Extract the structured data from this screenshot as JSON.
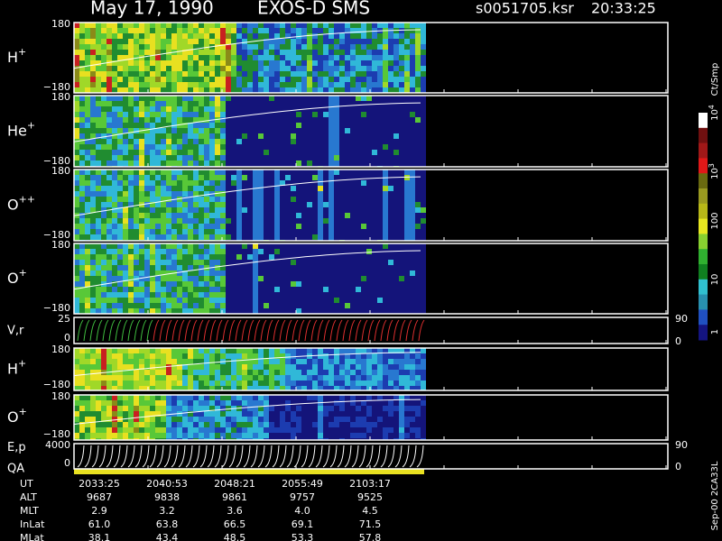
{
  "header": {
    "date": "May 17, 1990",
    "instrument": "EXOS-D SMS",
    "file": "s0051705.ksr",
    "time": "20:33:25"
  },
  "panels": [
    {
      "label": "H",
      "sup": "+",
      "ymax": "180",
      "ymin": "−180"
    },
    {
      "label": "He",
      "sup": "+",
      "ymax": "180",
      "ymin": "−180"
    },
    {
      "label": "O",
      "sup": "++",
      "ymax": "180",
      "ymin": "−180"
    },
    {
      "label": "O",
      "sup": "+",
      "ymax": "180",
      "ymin": "−180"
    },
    {
      "label": "V,r",
      "ymax": "25",
      "ymin": "0",
      "rmax": "90",
      "rmin": "0"
    },
    {
      "label": "H",
      "sup": "+",
      "ymax": "180",
      "ymin": "−180"
    },
    {
      "label": "O",
      "sup": "+",
      "ymax": "180",
      "ymin": "−180"
    },
    {
      "label": "E,p",
      "ymax": "4000",
      "ymin": "0",
      "rmax": "90",
      "rmin": "0"
    }
  ],
  "qa_label": "QA",
  "colorbar": {
    "unit": "Ct/Smp",
    "labels": [
      {
        "base": "10",
        "sup": "4"
      },
      {
        "base": "10",
        "sup": "3"
      },
      {
        "base": "100"
      },
      {
        "base": "10"
      },
      {
        "base": "1"
      }
    ]
  },
  "ephemeris": {
    "rows": [
      [
        "UT",
        "2033:25",
        "2040:53",
        "2048:21",
        "2055:49",
        "2103:17"
      ],
      [
        "ALT",
        "9687",
        "9838",
        "9861",
        "9757",
        "9525"
      ],
      [
        "MLT",
        "2.9",
        "3.2",
        "3.6",
        "4.0",
        "4.5"
      ],
      [
        "InLat",
        "61.0",
        "63.8",
        "66.5",
        "69.1",
        "71.5"
      ],
      [
        "MLat",
        "38.1",
        "43.4",
        "48.5",
        "53.3",
        "57.8"
      ]
    ]
  },
  "footer": "Sep-00 2CA33L"
}
